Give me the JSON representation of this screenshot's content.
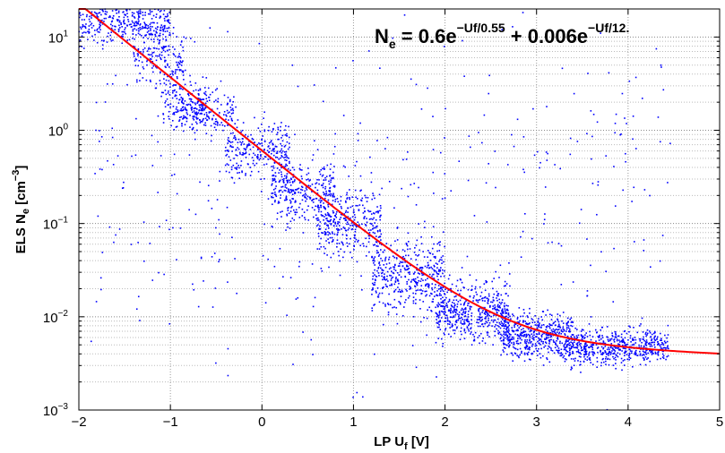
{
  "chart_data": {
    "type": "scatter",
    "x_scale": "linear",
    "y_scale": "log",
    "xlim": [
      -2,
      5
    ],
    "ylim": [
      0.001,
      20
    ],
    "xticks": [
      -2,
      -1,
      0,
      1,
      2,
      3,
      4,
      5
    ],
    "xtick_labels": [
      "−2",
      "−1",
      "0",
      "1",
      "2",
      "3",
      "4",
      "5"
    ],
    "yticks": [
      0.001,
      0.01,
      0.1,
      1,
      10
    ],
    "ytick_labels": [
      {
        "base": "10",
        "exp": "−3"
      },
      {
        "base": "10",
        "exp": "−2"
      },
      {
        "base": "10",
        "exp": "−1"
      },
      {
        "base": "10",
        "exp": "0"
      },
      {
        "base": "10",
        "exp": "1"
      }
    ],
    "grid": true,
    "xlabel": {
      "main": "LP U",
      "sub": "f",
      "unit": " [V]"
    },
    "ylabel": {
      "main": "ELS N",
      "sub": "e",
      "unit_open": " [cm",
      "unit_exp": "−3",
      "unit_close": "]"
    },
    "annotation": {
      "lhs_main": "N",
      "lhs_sub": "e",
      "eq": " = 0.6e",
      "exp1": "−Uf/0.55",
      "plus": " + 0.006e",
      "exp2": "−Uf/12."
    },
    "fit": {
      "a1": 0.6,
      "tau1": 0.55,
      "a2": 0.006,
      "tau2": 12.0,
      "x_range": [
        -2,
        5
      ]
    },
    "scatter_clusters": [
      {
        "x": [
          -2.0,
          -1.0
        ],
        "log_center": 1.15,
        "spread": 0.12,
        "count": 380
      },
      {
        "x": [
          -1.4,
          -0.85
        ],
        "log_center": 0.75,
        "spread": 0.15,
        "count": 160
      },
      {
        "x": [
          -1.1,
          -0.6
        ],
        "log_center": 0.3,
        "spread": 0.14,
        "count": 160
      },
      {
        "x": [
          -0.9,
          -0.3
        ],
        "log_center": 0.2,
        "spread": 0.1,
        "count": 160
      },
      {
        "x": [
          -0.4,
          0.3
        ],
        "log_center": -0.2,
        "spread": 0.16,
        "count": 260
      },
      {
        "x": [
          0.1,
          0.8
        ],
        "log_center": -0.65,
        "spread": 0.16,
        "count": 300
      },
      {
        "x": [
          0.6,
          1.3
        ],
        "log_center": -1.0,
        "spread": 0.18,
        "count": 340
      },
      {
        "x": [
          1.2,
          2.0
        ],
        "log_center": -1.55,
        "spread": 0.2,
        "count": 420
      },
      {
        "x": [
          1.9,
          2.7
        ],
        "log_center": -1.95,
        "spread": 0.16,
        "count": 500
      },
      {
        "x": [
          2.6,
          3.4
        ],
        "log_center": -2.2,
        "spread": 0.12,
        "count": 480
      },
      {
        "x": [
          3.3,
          4.45
        ],
        "log_center": -2.32,
        "spread": 0.1,
        "count": 560
      },
      {
        "x": [
          -1.9,
          4.5
        ],
        "log_center": -0.6,
        "spread": 1.0,
        "count": 420
      }
    ],
    "series": [
      {
        "kind": "scatter",
        "color": "#0000ff"
      },
      {
        "kind": "fit-line",
        "color": "#ff0000"
      }
    ]
  }
}
